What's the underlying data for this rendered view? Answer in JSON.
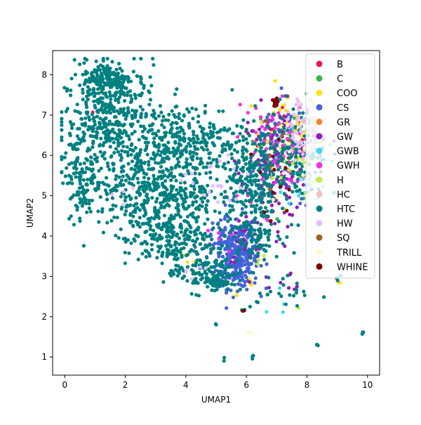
{
  "chart_data": {
    "type": "scatter",
    "title": "",
    "xlabel": "UMAP1",
    "ylabel": "UMAP2",
    "xlim": [
      -0.4,
      10.4
    ],
    "ylim": [
      0.55,
      8.6
    ],
    "xticks": [
      0,
      2,
      4,
      6,
      8,
      10
    ],
    "yticks": [
      1,
      2,
      3,
      4,
      5,
      6,
      7,
      8
    ],
    "xtick_labels": [
      "0",
      "2",
      "4",
      "6",
      "8",
      "10"
    ],
    "ytick_labels": [
      "1",
      "2",
      "3",
      "4",
      "5",
      "6",
      "7",
      "8"
    ],
    "grid": false,
    "legend_position": "top-right",
    "series": [
      {
        "name": "B",
        "color": "#e6194b",
        "clusters": [
          {
            "x": 7.4,
            "y": 6.5,
            "n": 15,
            "sx": 0.5,
            "sy": 0.5
          },
          {
            "x": 0.9,
            "y": 7.05,
            "n": 1,
            "sx": 0.02,
            "sy": 0.02
          }
        ]
      },
      {
        "name": "C",
        "color": "#3cb44b",
        "clusters": [
          {
            "x": 7.2,
            "y": 6.0,
            "n": 25,
            "sx": 0.6,
            "sy": 0.6
          }
        ]
      },
      {
        "name": "COO",
        "color": "#ffe119",
        "clusters": [
          {
            "x": 7.3,
            "y": 6.6,
            "n": 40,
            "sx": 0.55,
            "sy": 0.5
          },
          {
            "x": 5.8,
            "y": 2.9,
            "n": 6,
            "sx": 0.3,
            "sy": 0.3
          },
          {
            "x": 4.0,
            "y": 3.2,
            "n": 3,
            "sx": 0.2,
            "sy": 0.2
          },
          {
            "x": 9.1,
            "y": 2.8,
            "n": 2,
            "sx": 0.05,
            "sy": 0.05
          }
        ]
      },
      {
        "name": "CS",
        "color": "#4363d8",
        "clusters": [
          {
            "x": 5.7,
            "y": 3.4,
            "n": 240,
            "sx": 0.35,
            "sy": 0.35
          },
          {
            "x": 5.5,
            "y": 3.95,
            "n": 90,
            "sx": 0.45,
            "sy": 0.25
          },
          {
            "x": 7.0,
            "y": 6.2,
            "n": 40,
            "sx": 0.5,
            "sy": 0.6
          },
          {
            "x": 7.8,
            "y": 5.5,
            "n": 15,
            "sx": 0.4,
            "sy": 0.5
          }
        ]
      },
      {
        "name": "GR",
        "color": "#f58231",
        "clusters": [
          {
            "x": 7.5,
            "y": 6.2,
            "n": 4,
            "sx": 0.4,
            "sy": 0.4
          }
        ]
      },
      {
        "name": "GW",
        "color": "#911eb4",
        "clusters": [
          {
            "x": 7.0,
            "y": 5.8,
            "n": 160,
            "sx": 0.6,
            "sy": 0.7
          },
          {
            "x": 6.2,
            "y": 4.0,
            "n": 30,
            "sx": 0.5,
            "sy": 0.4
          },
          {
            "x": 7.5,
            "y": 2.7,
            "n": 8,
            "sx": 0.4,
            "sy": 0.2
          }
        ]
      },
      {
        "name": "GWB",
        "color": "#42d4f4",
        "clusters": [
          {
            "x": 8.0,
            "y": 5.8,
            "n": 40,
            "sx": 0.35,
            "sy": 0.6
          },
          {
            "x": 7.1,
            "y": 2.5,
            "n": 4,
            "sx": 0.3,
            "sy": 0.2
          }
        ]
      },
      {
        "name": "GWH",
        "color": "#f032e6",
        "clusters": [
          {
            "x": 6.8,
            "y": 6.3,
            "n": 70,
            "sx": 0.6,
            "sy": 0.5
          },
          {
            "x": 6.3,
            "y": 5.0,
            "n": 15,
            "sx": 0.5,
            "sy": 0.4
          },
          {
            "x": 5.0,
            "y": 4.0,
            "n": 5,
            "sx": 0.3,
            "sy": 0.3
          }
        ]
      },
      {
        "name": "H",
        "color": "#bfef45",
        "clusters": [
          {
            "x": 7.5,
            "y": 6.0,
            "n": 40,
            "sx": 0.5,
            "sy": 0.6
          },
          {
            "x": 6.5,
            "y": 3.3,
            "n": 3,
            "sx": 0.1,
            "sy": 0.1
          },
          {
            "x": 7.7,
            "y": 2.2,
            "n": 1,
            "sx": 0.02,
            "sy": 0.02
          }
        ]
      },
      {
        "name": "HC",
        "color": "#fabebe",
        "clusters": [
          {
            "x": 8.0,
            "y": 6.5,
            "n": 20,
            "sx": 0.3,
            "sy": 0.4
          }
        ]
      },
      {
        "name": "HTC",
        "color": "#008080",
        "clusters": [
          {
            "x": 1.6,
            "y": 6.8,
            "n": 420,
            "sx": 0.8,
            "sy": 0.7
          },
          {
            "x": 2.6,
            "y": 5.2,
            "n": 330,
            "sx": 0.9,
            "sy": 0.6
          },
          {
            "x": 1.4,
            "y": 7.9,
            "n": 150,
            "sx": 0.4,
            "sy": 0.2
          },
          {
            "x": 4.1,
            "y": 6.4,
            "n": 260,
            "sx": 0.9,
            "sy": 0.45
          },
          {
            "x": 3.4,
            "y": 3.9,
            "n": 200,
            "sx": 0.7,
            "sy": 0.35
          },
          {
            "x": 4.6,
            "y": 3.1,
            "n": 120,
            "sx": 0.5,
            "sy": 0.25
          },
          {
            "x": 0.6,
            "y": 5.6,
            "n": 120,
            "sx": 0.3,
            "sy": 0.6
          },
          {
            "x": 6.1,
            "y": 5.4,
            "n": 220,
            "sx": 0.45,
            "sy": 0.6
          },
          {
            "x": 7.5,
            "y": 5.9,
            "n": 160,
            "sx": 0.6,
            "sy": 0.6
          },
          {
            "x": 4.0,
            "y": 4.8,
            "n": 120,
            "sx": 0.6,
            "sy": 0.4
          },
          {
            "x": 6.3,
            "y": 4.1,
            "n": 80,
            "sx": 0.4,
            "sy": 0.3
          },
          {
            "x": 5.1,
            "y": 2.85,
            "n": 40,
            "sx": 0.25,
            "sy": 0.1
          },
          {
            "x": 7.2,
            "y": 2.6,
            "n": 25,
            "sx": 0.6,
            "sy": 0.25
          },
          {
            "x": 9.0,
            "y": 2.95,
            "n": 4,
            "sx": 0.05,
            "sy": 0.05
          },
          {
            "x": 6.2,
            "y": 1.0,
            "n": 3,
            "sx": 0.02,
            "sy": 0.02
          },
          {
            "x": 9.85,
            "y": 1.6,
            "n": 3,
            "sx": 0.02,
            "sy": 0.02
          },
          {
            "x": 8.35,
            "y": 1.3,
            "n": 3,
            "sx": 0.02,
            "sy": 0.02
          },
          {
            "x": 5.9,
            "y": 2.15,
            "n": 2,
            "sx": 0.02,
            "sy": 0.02
          },
          {
            "x": 5.0,
            "y": 1.8,
            "n": 2,
            "sx": 0.02,
            "sy": 0.02
          },
          {
            "x": 5.25,
            "y": 0.95,
            "n": 2,
            "sx": 0.02,
            "sy": 0.02
          }
        ]
      },
      {
        "name": "HW",
        "color": "#e6beff",
        "clusters": [
          {
            "x": 7.9,
            "y": 6.6,
            "n": 60,
            "sx": 0.4,
            "sy": 0.5
          },
          {
            "x": 5.0,
            "y": 5.2,
            "n": 20,
            "sx": 0.5,
            "sy": 0.4
          },
          {
            "x": 4.2,
            "y": 3.1,
            "n": 5,
            "sx": 0.2,
            "sy": 0.2
          },
          {
            "x": 1.8,
            "y": 5.1,
            "n": 4,
            "sx": 0.4,
            "sy": 0.3
          }
        ]
      },
      {
        "name": "SQ",
        "color": "#9a6324",
        "clusters": [
          {
            "x": 7.0,
            "y": 6.0,
            "n": 6,
            "sx": 0.5,
            "sy": 0.5
          }
        ]
      },
      {
        "name": "TRILL",
        "color": "#fffac8",
        "clusters": [
          {
            "x": 7.2,
            "y": 6.0,
            "n": 20,
            "sx": 0.6,
            "sy": 0.6
          },
          {
            "x": 6.1,
            "y": 1.6,
            "n": 2,
            "sx": 0.05,
            "sy": 0.05
          }
        ]
      },
      {
        "name": "WHINE",
        "color": "#800000",
        "clusters": [
          {
            "x": 6.95,
            "y": 7.3,
            "n": 12,
            "sx": 0.05,
            "sy": 0.05
          },
          {
            "x": 6.7,
            "y": 5.3,
            "n": 12,
            "sx": 0.5,
            "sy": 0.6
          },
          {
            "x": 5.9,
            "y": 2.15,
            "n": 2,
            "sx": 0.02,
            "sy": 0.02
          }
        ]
      }
    ]
  }
}
